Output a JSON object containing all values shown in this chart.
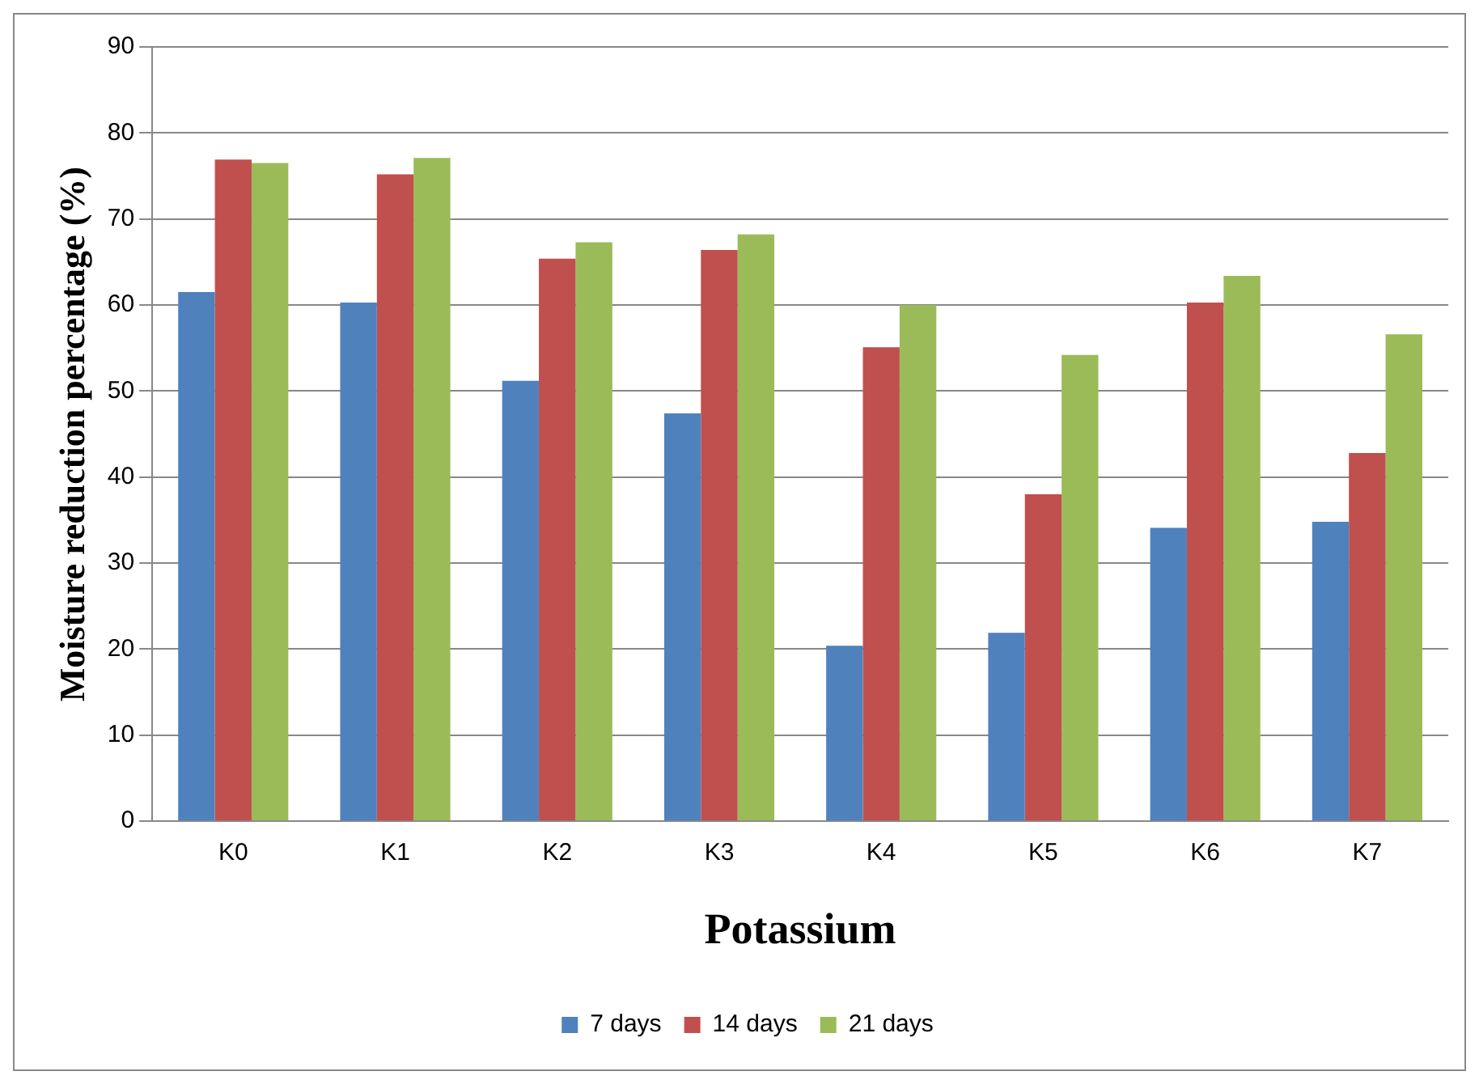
{
  "chart_data": {
    "type": "bar",
    "xlabel": "Potassium",
    "ylabel": "Moisture reduction percentage (%)",
    "categories": [
      "K0",
      "K1",
      "K2",
      "K3",
      "K4",
      "K5",
      "K6",
      "K7"
    ],
    "series": [
      {
        "name": "7 days",
        "color": "#4f81bd",
        "values": [
          61.5,
          60.3,
          51.2,
          47.4,
          20.4,
          21.9,
          34.1,
          34.8
        ]
      },
      {
        "name": "14 days",
        "color": "#c0504d",
        "values": [
          76.9,
          75.2,
          65.4,
          66.4,
          55.1,
          38.0,
          60.3,
          42.8
        ]
      },
      {
        "name": "21 days",
        "color": "#9bbb59",
        "values": [
          76.5,
          77.1,
          67.3,
          68.2,
          60.0,
          54.2,
          63.4,
          56.6
        ]
      }
    ],
    "ylim": [
      0,
      90
    ],
    "yticks": [
      0,
      10,
      20,
      30,
      40,
      50,
      60,
      70,
      80,
      90
    ],
    "grid": "y",
    "legend": "bottom"
  }
}
